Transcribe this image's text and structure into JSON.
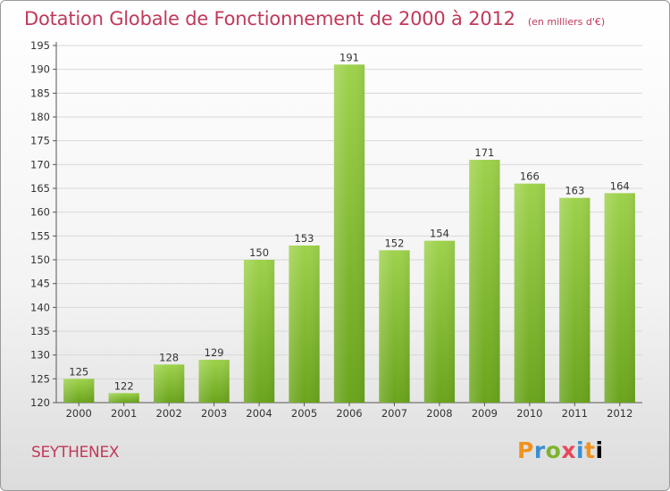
{
  "header": {
    "title": "Dotation Globale de Fonctionnement de 2000 à 2012",
    "unit": "(en milliers d'€)"
  },
  "footer": {
    "commune": "SEYTHENEX",
    "logo_letters": [
      "P",
      "r",
      "o",
      "x",
      "i",
      "t",
      "i"
    ]
  },
  "chart_data": {
    "type": "bar",
    "title": "Dotation Globale de Fonctionnement de 2000 à 2012",
    "subtitle": "(en milliers d'€)",
    "xlabel": "",
    "ylabel": "",
    "categories": [
      "2000",
      "2001",
      "2002",
      "2003",
      "2004",
      "2005",
      "2006",
      "2007",
      "2008",
      "2009",
      "2010",
      "2011",
      "2012"
    ],
    "values": [
      125,
      122,
      128,
      129,
      150,
      153,
      191,
      152,
      154,
      171,
      166,
      163,
      164
    ],
    "ylim": [
      120,
      195
    ],
    "yticks": [
      120,
      125,
      130,
      135,
      140,
      145,
      150,
      155,
      160,
      165,
      170,
      175,
      180,
      185,
      190,
      195
    ],
    "grid": true,
    "colors": {
      "bar_light": "#9ed24c",
      "bar_dark": "#6aa41c",
      "grid": "#d8d8d8",
      "title": "#c0395a"
    }
  }
}
